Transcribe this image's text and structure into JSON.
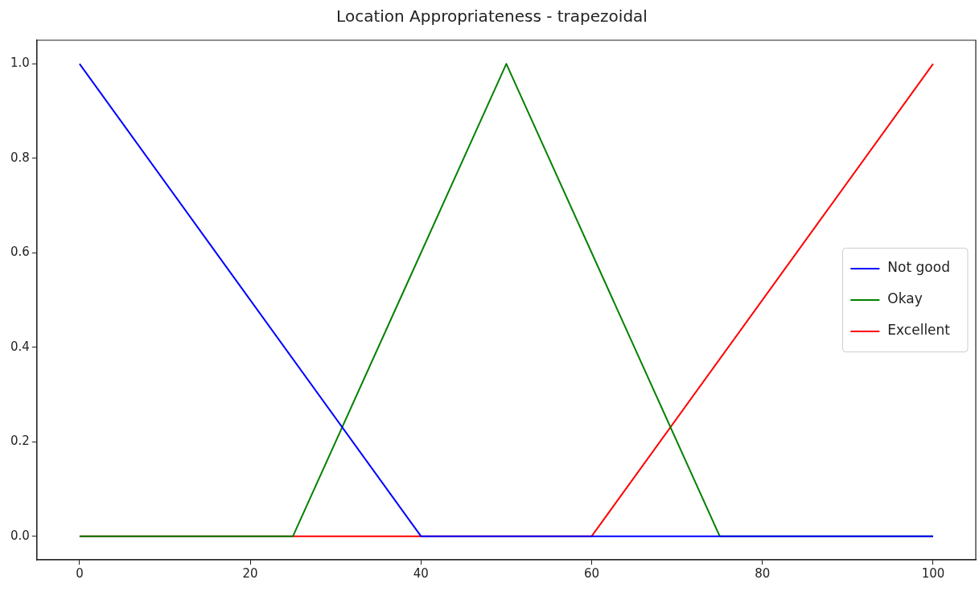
{
  "chart_data": {
    "type": "line",
    "title": "Location Appropriateness - trapezoidal",
    "xlim": [
      -5,
      105
    ],
    "ylim": [
      -0.05,
      1.05
    ],
    "xticks": [
      0,
      20,
      40,
      60,
      80,
      100
    ],
    "yticks": [
      {
        "value": 0,
        "label": "0.0"
      },
      {
        "value": 0.2,
        "label": "0.2"
      },
      {
        "value": 0.4,
        "label": "0.4"
      },
      {
        "value": 0.6,
        "label": "0.6"
      },
      {
        "value": 0.8,
        "label": "0.8"
      },
      {
        "value": 1,
        "label": "1.0"
      }
    ],
    "series": [
      {
        "name": "Not good",
        "color": "#0000ff",
        "x": [
          0,
          40,
          100
        ],
        "values": [
          1,
          0,
          0
        ]
      },
      {
        "name": "Okay",
        "color": "#008000",
        "x": [
          0,
          25,
          50,
          75,
          100
        ],
        "values": [
          0,
          0,
          1,
          0,
          0
        ]
      },
      {
        "name": "Excellent",
        "color": "#ff0000",
        "x": [
          0,
          60,
          100
        ],
        "values": [
          0,
          0,
          1
        ]
      }
    ],
    "legend": "right",
    "grid": false,
    "marker": "none",
    "line_style": "solid"
  }
}
